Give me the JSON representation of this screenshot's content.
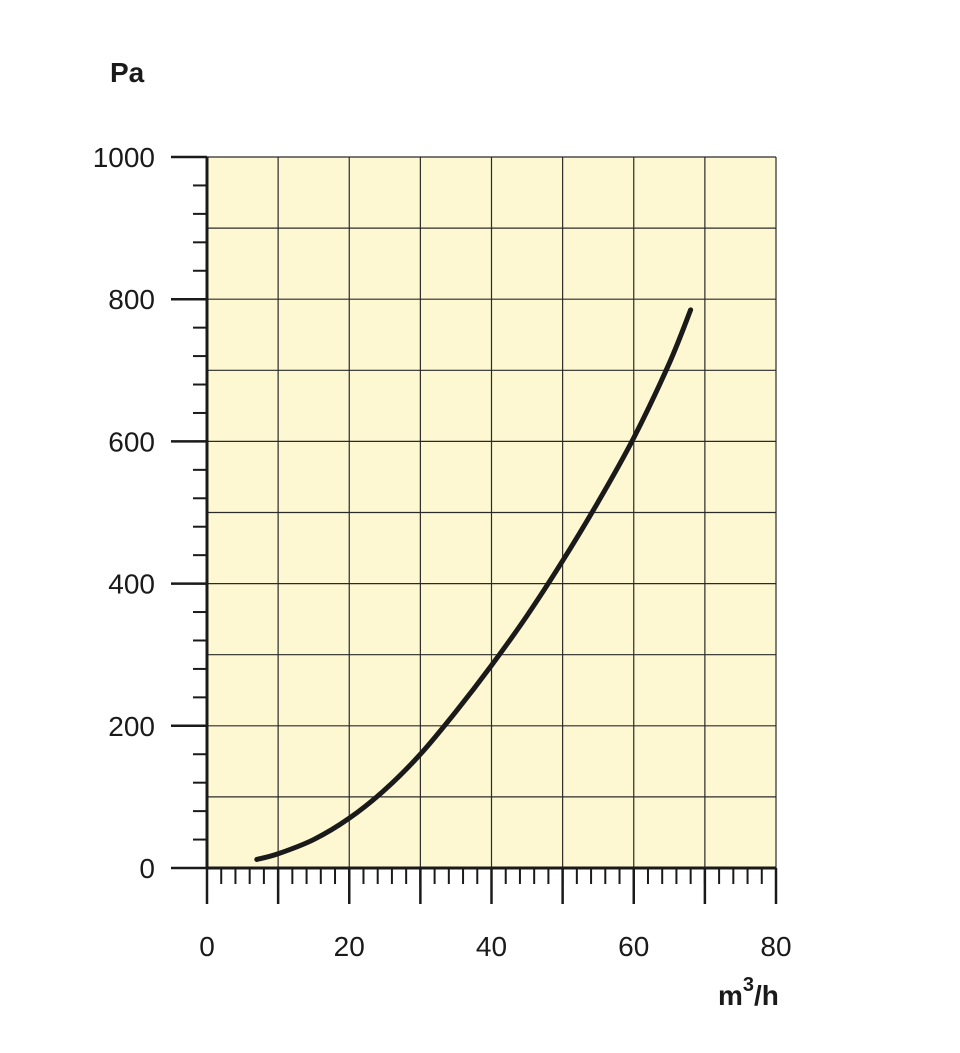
{
  "chart_data": {
    "type": "line",
    "title": "",
    "ylabel": "Pa",
    "xlabel_base": "m",
    "xlabel_sup": "3",
    "xlabel_tail": "/h",
    "xlim": [
      0,
      80
    ],
    "ylim": [
      0,
      1000
    ],
    "x_ticks": [
      0,
      20,
      40,
      60,
      80
    ],
    "y_ticks": [
      0,
      200,
      400,
      600,
      800,
      1000
    ],
    "x_ticks_labels": [
      "0",
      "20",
      "40",
      "60",
      "80"
    ],
    "y_ticks_labels": [
      "0",
      "200",
      "400",
      "600",
      "800",
      "1000"
    ],
    "x_minor_step": 2,
    "y_minor_step": 40,
    "grid_x_step": 10,
    "grid_y_step": 100,
    "grid": true,
    "series": [
      {
        "x": [
          7,
          10,
          15,
          20,
          25,
          30,
          35,
          40,
          45,
          50,
          55,
          60,
          65,
          68
        ],
        "y": [
          12,
          20,
          40,
          70,
          110,
          160,
          220,
          285,
          355,
          432,
          515,
          605,
          710,
          785
        ]
      }
    ],
    "colors": {
      "plot_background": "#fdf8d2",
      "grid": "#2a2a2a",
      "line": "#1a1a1a",
      "axis": "#1a1a1a"
    }
  }
}
